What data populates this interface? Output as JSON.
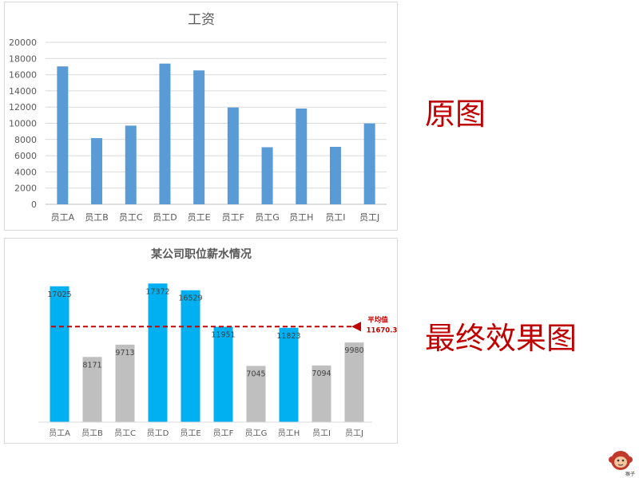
{
  "labels": {
    "original": "原图",
    "final": "最终效果图",
    "logo_text": "猴子"
  },
  "colors": {
    "bar_original": "#5b9bd5",
    "bar_high": "#00b0f0",
    "bar_low": "#bfbfbf",
    "avg_line": "#c00000",
    "label_red": "#c00000"
  },
  "chart_data": [
    {
      "type": "bar",
      "title": "工资",
      "categories": [
        "员工A",
        "员工B",
        "员工C",
        "员工D",
        "员工E",
        "员工F",
        "员工G",
        "员工H",
        "员工I",
        "员工J"
      ],
      "values": [
        17025,
        8171,
        9713,
        17372,
        16529,
        11951,
        7045,
        11823,
        7094,
        9980
      ],
      "ylim": [
        0,
        20000
      ],
      "yticks": [
        0,
        2000,
        4000,
        6000,
        8000,
        10000,
        12000,
        14000,
        16000,
        18000,
        20000
      ],
      "grid": true,
      "legend": "none"
    },
    {
      "type": "bar",
      "title": "某公司职位薪水情况",
      "categories": [
        "员工A",
        "员工B",
        "员工C",
        "员工D",
        "员工E",
        "员工F",
        "员工G",
        "员工H",
        "员工I",
        "员工J"
      ],
      "values": [
        17025,
        8171,
        9713,
        17372,
        16529,
        11951,
        7045,
        11823,
        7094,
        9980
      ],
      "data_labels": [
        "17025",
        "8171",
        "9713",
        "17372",
        "16529",
        "11951",
        "7045",
        "11823",
        "7094",
        "9980"
      ],
      "ylim": [
        0,
        20000
      ],
      "grid": false,
      "average": {
        "label": "平均值",
        "value_label": "11670.3",
        "value": 11670.3
      }
    }
  ]
}
